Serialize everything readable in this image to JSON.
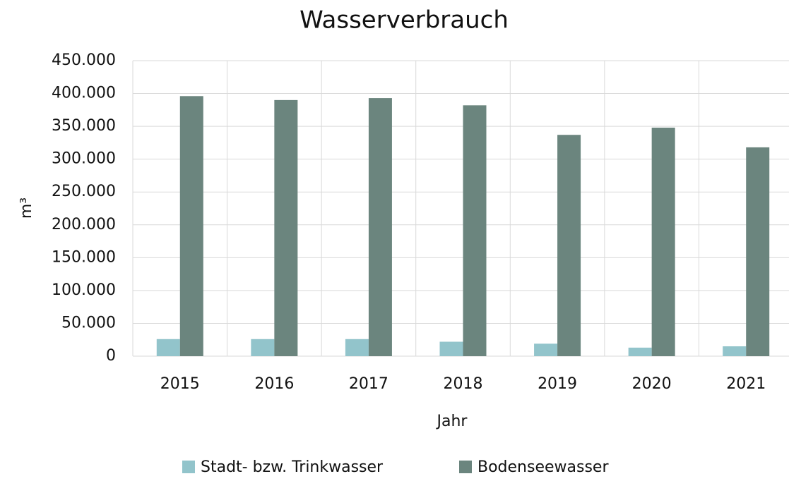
{
  "chart_data": {
    "type": "bar",
    "title": "Wasserverbrauch",
    "x_label": "Jahr",
    "y_label": "m³",
    "categories": [
      "2015",
      "2016",
      "2017",
      "2018",
      "2019",
      "2020",
      "2021"
    ],
    "series": [
      {
        "name": "Stadt- bzw. Trinkwasser",
        "color": "#92c4cb",
        "values": [
          26000,
          26000,
          26000,
          22000,
          19000,
          13000,
          15000
        ]
      },
      {
        "name": "Bodenseewasser",
        "color": "#6b857e",
        "values": [
          396000,
          390000,
          393000,
          382000,
          337000,
          348000,
          318000
        ]
      }
    ],
    "ylim": [
      0,
      450000
    ],
    "yticks": [
      0,
      {
        "value": 50000,
        "label": "50.000"
      },
      {
        "value": 100000,
        "label": "100.000"
      },
      {
        "value": 150000,
        "label": "150.000"
      },
      {
        "value": 200000,
        "label": "200.000"
      },
      {
        "value": 250000,
        "label": "250.000"
      },
      {
        "value": 300000,
        "label": "300.000"
      },
      {
        "value": 350000,
        "label": "350.000"
      },
      {
        "value": 400000,
        "label": "400.000"
      },
      {
        "value": 450000,
        "label": "450.000"
      }
    ],
    "grid": true,
    "legend": "bottom"
  }
}
